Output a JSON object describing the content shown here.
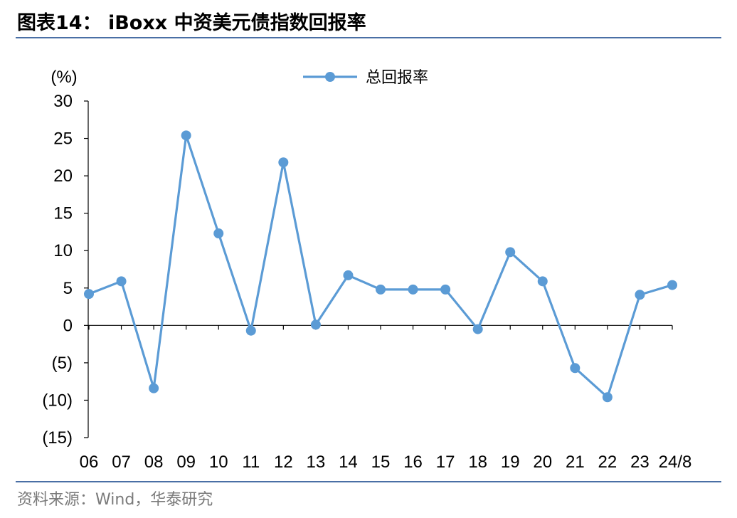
{
  "title": "图表14： iBoxx 中资美元债指数回报率",
  "source": "资料来源：Wind，华泰研究",
  "chart_data": {
    "type": "line",
    "unit_label": "(%)",
    "categories": [
      "06",
      "07",
      "08",
      "09",
      "10",
      "11",
      "12",
      "13",
      "14",
      "15",
      "16",
      "17",
      "18",
      "19",
      "20",
      "21",
      "22",
      "23",
      "24/8"
    ],
    "series": [
      {
        "name": "总回报率",
        "values": [
          4.2,
          5.9,
          -8.4,
          25.4,
          12.3,
          -0.7,
          21.8,
          0.1,
          6.7,
          4.8,
          4.8,
          4.8,
          -0.5,
          9.8,
          5.9,
          -5.7,
          -9.6,
          4.1,
          5.4
        ],
        "color": "#5b9bd5"
      }
    ],
    "ylim": [
      -15,
      30
    ],
    "yticks": [
      30,
      25,
      20,
      15,
      10,
      5,
      0,
      -5,
      -10,
      -15
    ],
    "ytick_labels": [
      "30",
      "25",
      "20",
      "15",
      "10",
      "5",
      "0",
      "(5)",
      "(10)",
      "(15)"
    ],
    "legend_position": "top-center",
    "grid": false
  }
}
